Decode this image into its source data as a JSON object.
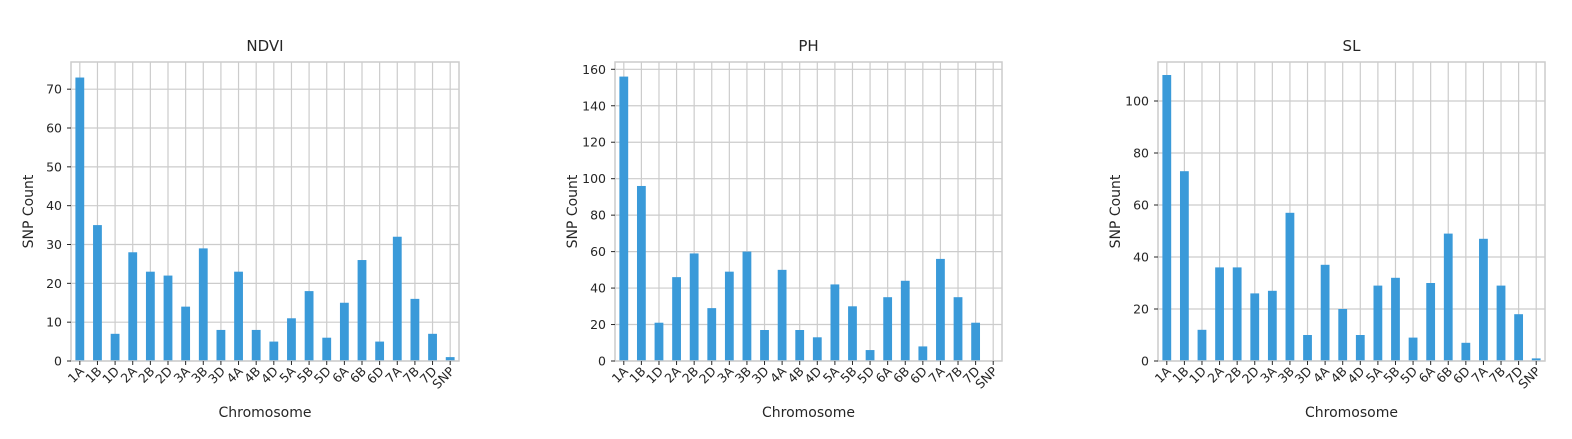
{
  "chart_data": [
    {
      "type": "bar",
      "title": "NDVI",
      "xlabel": "Chromosome",
      "ylabel": "SNP Count",
      "categories": [
        "1A",
        "1B",
        "1D",
        "2A",
        "2B",
        "2D",
        "3A",
        "3B",
        "3D",
        "4A",
        "4B",
        "4D",
        "5A",
        "5B",
        "5D",
        "6A",
        "6B",
        "6D",
        "7A",
        "7B",
        "7D",
        "SNP"
      ],
      "values": [
        73,
        35,
        7,
        28,
        23,
        22,
        14,
        29,
        8,
        23,
        8,
        5,
        11,
        18,
        6,
        15,
        26,
        5,
        32,
        16,
        7,
        1
      ],
      "ylim": [
        0,
        77
      ],
      "yticks": [
        0,
        10,
        20,
        30,
        40,
        50,
        60,
        70
      ],
      "grid": true,
      "color": "#3a9ad9"
    },
    {
      "type": "bar",
      "title": "PH",
      "xlabel": "Chromosome",
      "ylabel": "SNP Count",
      "categories": [
        "1A",
        "1B",
        "1D",
        "2A",
        "2B",
        "2D",
        "3A",
        "3B",
        "3D",
        "4A",
        "4B",
        "4D",
        "5A",
        "5B",
        "5D",
        "6A",
        "6B",
        "6D",
        "7A",
        "7B",
        "7D",
        "SNP"
      ],
      "values": [
        156,
        96,
        21,
        46,
        59,
        29,
        49,
        60,
        17,
        50,
        17,
        13,
        42,
        30,
        6,
        35,
        44,
        8,
        56,
        35,
        21,
        0
      ],
      "ylim": [
        0,
        164
      ],
      "yticks": [
        0,
        20,
        40,
        60,
        80,
        100,
        120,
        140,
        160
      ],
      "grid": true,
      "color": "#3a9ad9"
    },
    {
      "type": "bar",
      "title": "SL",
      "xlabel": "Chromosome",
      "ylabel": "SNP Count",
      "categories": [
        "1A",
        "1B",
        "1D",
        "2A",
        "2B",
        "2D",
        "3A",
        "3B",
        "3D",
        "4A",
        "4B",
        "4D",
        "5A",
        "5B",
        "5D",
        "6A",
        "6B",
        "6D",
        "7A",
        "7B",
        "7D",
        "SNP"
      ],
      "values": [
        110,
        73,
        12,
        36,
        36,
        26,
        27,
        57,
        10,
        37,
        20,
        10,
        29,
        32,
        9,
        30,
        49,
        7,
        47,
        29,
        18,
        1
      ],
      "ylim": [
        0,
        115
      ],
      "yticks": [
        0,
        20,
        40,
        60,
        80,
        100
      ],
      "grid": true,
      "color": "#3a9ad9"
    }
  ]
}
